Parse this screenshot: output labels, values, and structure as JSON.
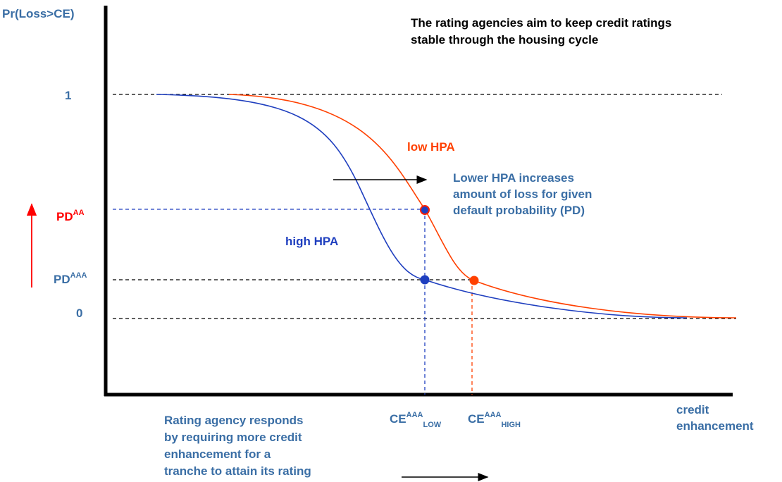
{
  "axis": {
    "y_label": "Pr(Loss>CE)",
    "x_label": [
      "credit",
      "enhancement"
    ],
    "tick_one": "1",
    "tick_zero": "0"
  },
  "title": [
    "The rating agencies aim to keep credit ratings",
    "stable through the housing cycle"
  ],
  "pd_aa": {
    "base": "PD",
    "sup": "AA"
  },
  "pd_aaa": {
    "base": "PD",
    "sup": "AAA"
  },
  "curves": {
    "low": "low HPA",
    "high": "high HPA"
  },
  "note_top": [
    "Lower HPA increases",
    "amount of loss for given",
    "default probability (PD)"
  ],
  "ce_low": {
    "base": "CE",
    "sup": "AAA",
    "sub": "LOW"
  },
  "ce_high": {
    "base": "CE",
    "sup": "AAA",
    "sub": "HIGH"
  },
  "note_bottom": [
    "Rating agency responds",
    "by requiring more credit",
    "enhancement for a",
    "tranche to attain its rating"
  ]
}
